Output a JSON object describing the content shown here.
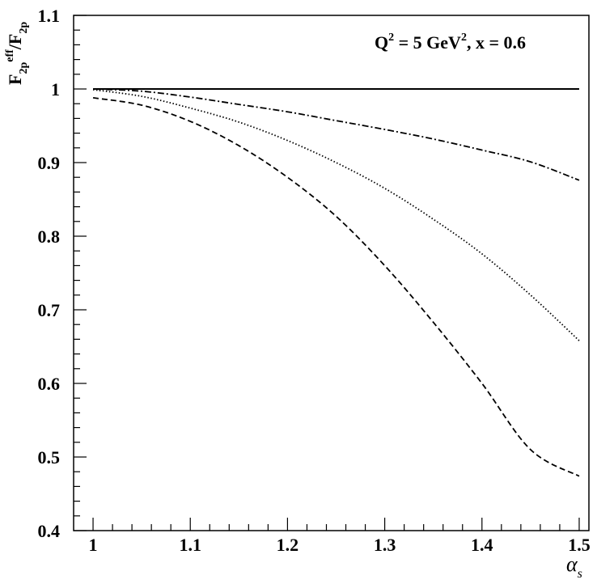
{
  "chart_data": {
    "type": "line",
    "title": "",
    "annotation": {
      "q_base": "Q",
      "q_exp": "2",
      "mid": " = 5 GeV",
      "gev_exp": "2",
      "tail": ", x = 0.6"
    },
    "xlabel": {
      "base": "α",
      "sub": "s"
    },
    "ylabel": {
      "num_base": "F",
      "num_sub": "2p",
      "num_sup": "eff",
      "slash": "/",
      "den_base": "F",
      "den_sub": "2p"
    },
    "xlim": [
      0.98,
      1.51
    ],
    "ylim": [
      0.4,
      1.1
    ],
    "x_ticks": [
      1,
      1.1,
      1.2,
      1.3,
      1.4,
      1.5
    ],
    "x_tick_labels": [
      "1",
      "1.1",
      "1.2",
      "1.3",
      "1.4",
      "1.5"
    ],
    "y_ticks": [
      0.4,
      0.5,
      0.6,
      0.7,
      0.8,
      0.9,
      1,
      1.1
    ],
    "y_tick_labels": [
      "0.4",
      "0.5",
      "0.6",
      "0.7",
      "0.8",
      "0.9",
      "1",
      "1.1"
    ],
    "grid": false,
    "series": [
      {
        "style": "solid",
        "x": [
          1.0,
          1.5
        ],
        "y": [
          1.0,
          1.0
        ]
      },
      {
        "style": "dashdot",
        "x": [
          1.0,
          1.05,
          1.1,
          1.15,
          1.2,
          1.25,
          1.3,
          1.35,
          1.4,
          1.45,
          1.5
        ],
        "y": [
          1.0,
          0.997,
          0.989,
          0.979,
          0.969,
          0.957,
          0.945,
          0.932,
          0.917,
          0.901,
          0.876
        ]
      },
      {
        "style": "dotted",
        "x": [
          1.0,
          1.05,
          1.1,
          1.15,
          1.2,
          1.25,
          1.3,
          1.35,
          1.4,
          1.45,
          1.5
        ],
        "y": [
          0.999,
          0.99,
          0.974,
          0.955,
          0.93,
          0.9,
          0.865,
          0.823,
          0.776,
          0.72,
          0.658
        ]
      },
      {
        "style": "dashed",
        "x": [
          1.0,
          1.05,
          1.1,
          1.15,
          1.2,
          1.25,
          1.3,
          1.35,
          1.4,
          1.45,
          1.5
        ],
        "y": [
          0.988,
          0.978,
          0.956,
          0.923,
          0.88,
          0.827,
          0.76,
          0.683,
          0.6,
          0.51,
          0.474
        ]
      }
    ]
  }
}
